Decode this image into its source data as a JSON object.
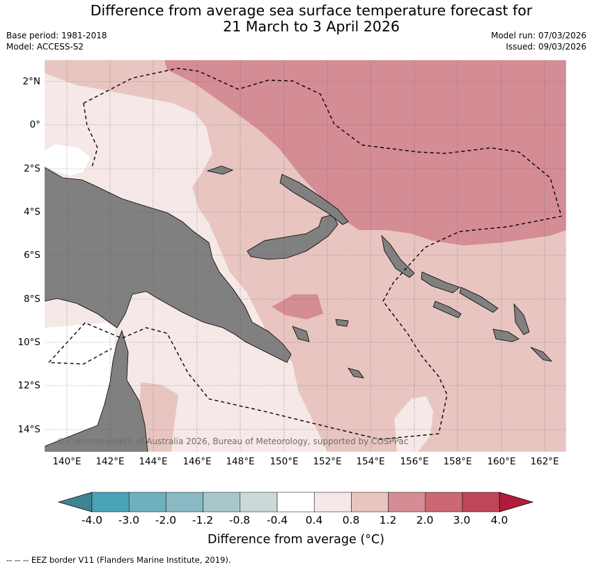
{
  "title_line1": "Difference from average sea surface temperature forecast for",
  "title_line2": "21 March to 3 April 2026",
  "meta": {
    "base_period": "Base period: 1981-2018",
    "model": "Model: ACCESS-S2",
    "model_run": "Model run: 07/03/2026",
    "issued": "Issued: 09/03/2026"
  },
  "lat_labels": [
    "2°N",
    "0°",
    "2°S",
    "4°S",
    "6°S",
    "8°S",
    "10°S",
    "12°S",
    "14°S"
  ],
  "lon_labels": [
    "140°E",
    "142°E",
    "144°E",
    "146°E",
    "148°E",
    "150°E",
    "152°E",
    "154°E",
    "156°E",
    "158°E",
    "160°E",
    "162°E"
  ],
  "copyright": "© Commonwealth of Australia 2026, Bureau of Meteorology, supported by COSPPac",
  "colorbar": {
    "ticks": [
      "-4.0",
      "-3.0",
      "-2.0",
      "-1.2",
      "-0.8",
      "-0.4",
      "0.4",
      "0.8",
      "1.2",
      "2.0",
      "3.0",
      "4.0"
    ],
    "colors": [
      "#4aa3b5",
      "#6fb0be",
      "#8ab9c4",
      "#a8c6ca",
      "#cdd8d9",
      "#ffffff",
      "#f5e8e6",
      "#e8c5c1",
      "#d48c95",
      "#cb6873",
      "#bf4656"
    ],
    "under_color": "#3f8591",
    "over_color": "#b01c3a",
    "title": "Difference from average (°C)"
  },
  "footer": "--  --  -- EEZ border V11 (Flanders Marine Institute, 2019)."
}
